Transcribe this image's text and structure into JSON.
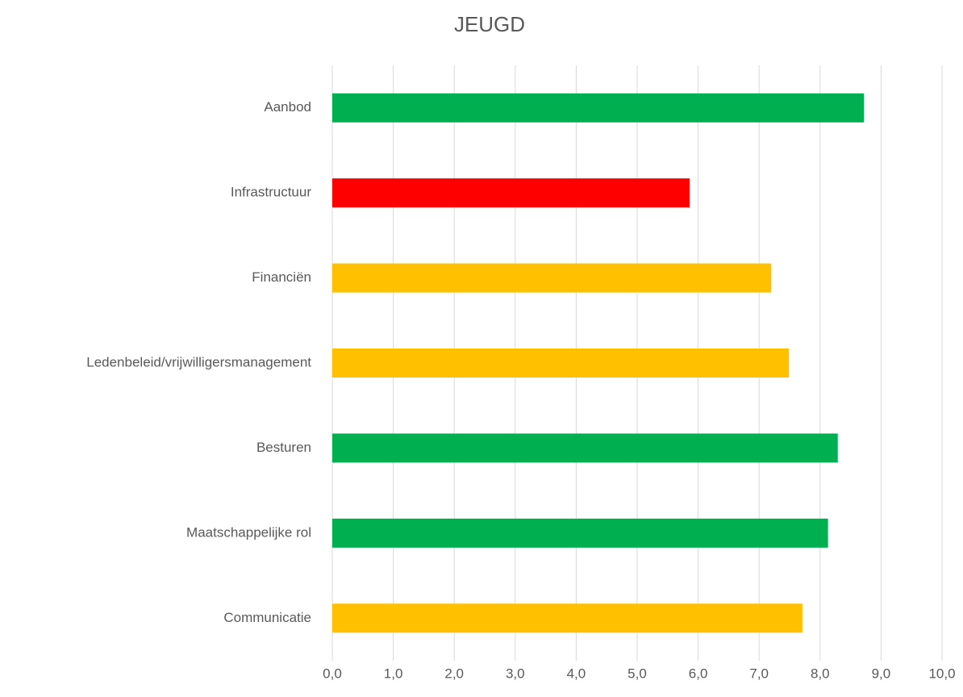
{
  "chart_data": {
    "type": "bar",
    "orientation": "horizontal",
    "title": "JEUGD",
    "categories": [
      "Aanbod",
      "Infrastructuur",
      "Financiën",
      "Ledenbeleid/vrijwilligersmanagement",
      "Besturen",
      "Maatschappelijke rol",
      "Communicatie"
    ],
    "values": [
      8.72,
      5.86,
      7.2,
      7.49,
      8.29,
      8.13,
      7.71
    ],
    "colors": [
      "#00b050",
      "#ff0000",
      "#ffc000",
      "#ffc000",
      "#00b050",
      "#00b050",
      "#ffc000"
    ],
    "xlim": [
      0,
      10
    ],
    "xticks": [
      {
        "value": 0,
        "label": "0,0"
      },
      {
        "value": 1,
        "label": "1,0"
      },
      {
        "value": 2,
        "label": "2,0"
      },
      {
        "value": 3,
        "label": "3,0"
      },
      {
        "value": 4,
        "label": "4,0"
      },
      {
        "value": 5,
        "label": "5,0"
      },
      {
        "value": 6,
        "label": "6,0"
      },
      {
        "value": 7,
        "label": "7,0"
      },
      {
        "value": 8,
        "label": "8,0"
      },
      {
        "value": 9,
        "label": "9,0"
      },
      {
        "value": 10,
        "label": "10,0"
      }
    ],
    "grid": true
  }
}
